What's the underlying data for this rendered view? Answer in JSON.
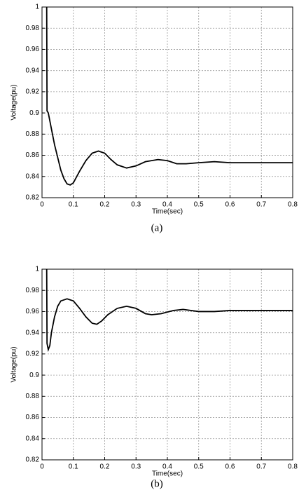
{
  "chart_data": [
    {
      "type": "line",
      "caption": "(a)",
      "xlabel": "Time(sec)",
      "ylabel": "Voltage(pu)",
      "x": [
        0.015,
        0.016,
        0.02,
        0.03,
        0.04,
        0.05,
        0.06,
        0.07,
        0.08,
        0.09,
        0.1,
        0.12,
        0.14,
        0.16,
        0.18,
        0.2,
        0.22,
        0.24,
        0.27,
        0.3,
        0.33,
        0.37,
        0.4,
        0.43,
        0.46,
        0.5,
        0.55,
        0.6,
        0.7,
        0.8
      ],
      "values": [
        1,
        0.902,
        0.9,
        0.885,
        0.87,
        0.858,
        0.846,
        0.838,
        0.833,
        0.832,
        0.834,
        0.845,
        0.855,
        0.862,
        0.864,
        0.862,
        0.856,
        0.851,
        0.848,
        0.85,
        0.854,
        0.856,
        0.855,
        0.852,
        0.852,
        0.853,
        0.854,
        0.853,
        0.853,
        0.853
      ],
      "color": "#000000",
      "xlim": [
        0,
        0.8
      ],
      "xticks": [
        0,
        0.1,
        0.2,
        0.3,
        0.4,
        0.5,
        0.6,
        0.7,
        0.8
      ],
      "ylim": [
        0.82,
        1
      ],
      "yticks": [
        0.82,
        0.84,
        0.86,
        0.88,
        0.9,
        0.92,
        0.94,
        0.96,
        0.98,
        1
      ],
      "grid": true
    },
    {
      "type": "line",
      "caption": "(b)",
      "xlabel": "Time(sec)",
      "ylabel": "Voltage(pu)",
      "x": [
        0.015,
        0.016,
        0.02,
        0.025,
        0.03,
        0.04,
        0.05,
        0.06,
        0.08,
        0.1,
        0.12,
        0.14,
        0.16,
        0.175,
        0.19,
        0.21,
        0.24,
        0.27,
        0.3,
        0.33,
        0.35,
        0.38,
        0.42,
        0.45,
        0.5,
        0.55,
        0.6,
        0.7,
        0.8
      ],
      "values": [
        1,
        0.93,
        0.924,
        0.928,
        0.94,
        0.955,
        0.965,
        0.97,
        0.972,
        0.97,
        0.963,
        0.955,
        0.949,
        0.948,
        0.951,
        0.957,
        0.963,
        0.965,
        0.963,
        0.958,
        0.957,
        0.958,
        0.961,
        0.962,
        0.96,
        0.96,
        0.961,
        0.961,
        0.961
      ],
      "color": "#000000",
      "xlim": [
        0,
        0.8
      ],
      "xticks": [
        0,
        0.1,
        0.2,
        0.3,
        0.4,
        0.5,
        0.6,
        0.7,
        0.8
      ],
      "ylim": [
        0.82,
        1
      ],
      "yticks": [
        0.82,
        0.84,
        0.86,
        0.88,
        0.9,
        0.92,
        0.94,
        0.96,
        0.98,
        1
      ],
      "grid": true
    }
  ]
}
